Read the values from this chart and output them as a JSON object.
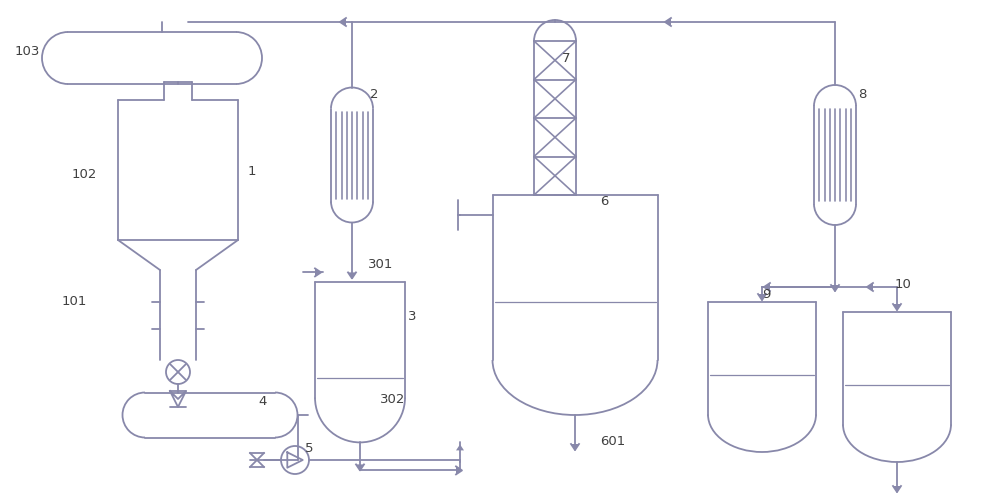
{
  "bg_color": "#ffffff",
  "line_color": "#8888aa",
  "line_width": 1.3,
  "lc_dark": "#666677"
}
